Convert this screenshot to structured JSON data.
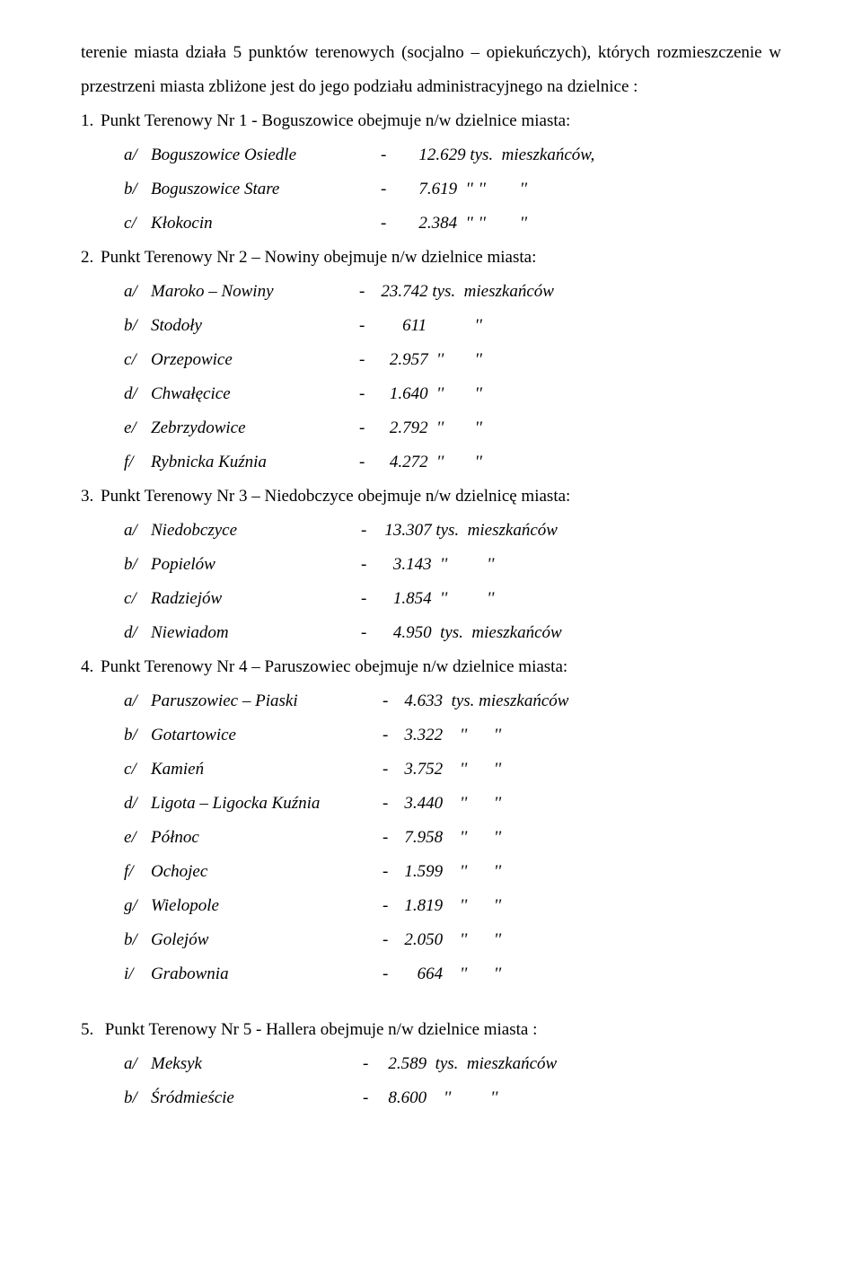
{
  "intro": "terenie miasta  działa 5 punktów terenowych (socjalno – opiekuńczych), których rozmieszczenie w przestrzeni miasta zbliżone jest do jego podziału administracyjnego na dzielnice :",
  "points": [
    {
      "num": "1.",
      "title": "Punkt Terenowy Nr 1 - Boguszowice  obejmuje  n/w  dzielnice  miasta:",
      "subs": [
        {
          "l": "a/",
          "name": "Boguszowice Osiedle",
          "nameW": 220,
          "dash": "-",
          "dashPad": 36,
          "val": "12.629 tys.  mieszkańców,"
        },
        {
          "l": "b/",
          "name": "Boguszowice Stare",
          "nameW": 220,
          "dash": "-",
          "dashPad": 36,
          "val": "7.619  ''",
          "unit": "''        ''"
        },
        {
          "l": "c/",
          "name": "Kłokocin",
          "nameW": 220,
          "dash": "-",
          "dashPad": 36,
          "val": "2.384  ''",
          "unit": "''        ''"
        }
      ]
    },
    {
      "num": "2.",
      "title": "Punkt  Terenowy  Nr 2 – Nowiny  obejmuje  n/w  dzielnice  miasta:",
      "subs": [
        {
          "l": "a/",
          "name": "Maroko – Nowiny",
          "nameW": 214,
          "dash": "-",
          "dashPad": 18,
          "val": "23.742 tys.  mieszkańców"
        },
        {
          "l": "b/",
          "name": "Stodoły",
          "nameW": 214,
          "dash": "-",
          "dashPad": 18,
          "val": "     611",
          "unit": "          ''"
        },
        {
          "l": "c/",
          "name": "Orzepowice",
          "nameW": 214,
          "dash": "-",
          "dashPad": 18,
          "val": "  2.957  ''",
          "unit": "      ''"
        },
        {
          "l": "d/",
          "name": "Chwałęcice",
          "nameW": 214,
          "dash": "-",
          "dashPad": 18,
          "val": "  1.640  ''",
          "unit": "      ''"
        },
        {
          "l": "e/",
          "name": "Zebrzydowice",
          "nameW": 214,
          "dash": "-",
          "dashPad": 18,
          "val": "  2.792  ''",
          "unit": "      ''"
        },
        {
          "l": "f/",
          "name": "Rybnicka  Kuźnia",
          "nameW": 214,
          "dash": "-",
          "dashPad": 18,
          "val": "  4.272  ''",
          "unit": "      ''"
        }
      ]
    },
    {
      "num": "3.",
      "title": "Punkt  Terenowy  Nr 3 – Niedobczyce  obejmuje  n/w  dzielnicę  miasta:",
      "subs": [
        {
          "l": "a/",
          "name": "Niedobczyce",
          "nameW": 214,
          "dash": "-",
          "dashPad": 20,
          "val": "13.307 tys.  mieszkańców"
        },
        {
          "l": "b/",
          "name": "Popielów",
          "nameW": 214,
          "dash": "-",
          "dashPad": 20,
          "val": "  3.143  ''",
          "unit": "        ''"
        },
        {
          "l": "c/",
          "name": "Radziejów",
          "nameW": 214,
          "dash": "-",
          "dashPad": 20,
          "val": "  1.854  ''",
          "unit": "        ''"
        },
        {
          "l": "d/",
          "name": "Niewiadom",
          "nameW": 214,
          "dash": "-",
          "dashPad": 20,
          "val": "  4.950  tys.  mieszkańców"
        }
      ]
    },
    {
      "num": "4.",
      "title": "Punkt  Terenowy  Nr 4 – Paruszowiec  obejmuje  n/w  dzielnice  miasta:",
      "subs": [
        {
          "l": "a/",
          "name": "Paruszowiec – Piaski",
          "nameW": 240,
          "dash": "-",
          "dashPad": 18,
          "val": "4.633  tys. mieszkańców"
        },
        {
          "l": "b/",
          "name": "Gotartowice",
          "nameW": 240,
          "dash": "-",
          "dashPad": 18,
          "val": "3.322    ''",
          "unit": "     ''"
        },
        {
          "l": "c/",
          "name": "Kamień",
          "nameW": 240,
          "dash": "-",
          "dashPad": 18,
          "val": "3.752    ''",
          "unit": "     ''"
        },
        {
          "l": "d/",
          "name": "Ligota – Ligocka Kuźnia",
          "nameW": 240,
          "dash": "-",
          "dashPad": 18,
          "val": "3.440    ''",
          "unit": "     ''"
        },
        {
          "l": "e/",
          "name": "Północ",
          "nameW": 240,
          "dash": "-",
          "dashPad": 18,
          "val": "7.958    ''",
          "unit": "     ''"
        },
        {
          "l": "f/",
          "name": "Ochojec",
          "nameW": 240,
          "dash": "-",
          "dashPad": 18,
          "val": "1.599    ''",
          "unit": "     ''"
        },
        {
          "l": "g/",
          "name": "Wielopole",
          "nameW": 240,
          "dash": "-",
          "dashPad": 18,
          "val": "1.819    ''",
          "unit": "     ''"
        },
        {
          "l": "b/",
          "name": "Golejów",
          "nameW": 240,
          "dash": "-",
          "dashPad": 18,
          "val": "2.050    ''",
          "unit": "     ''"
        },
        {
          "l": "i/",
          "name": "Grabownia",
          "nameW": 240,
          "dash": "-",
          "dashPad": 18,
          "val": "   664    ''",
          "unit": "     ''"
        }
      ]
    }
  ],
  "final": {
    "num": "5.",
    "title": "Punkt  Terenowy  Nr 5  -  Hallera  obejmuje  n/w  dzielnice  miasta :",
    "subs": [
      {
        "l": "a/",
        "name": "Meksyk",
        "nameW": 214,
        "dash": "-",
        "dashPad": 22,
        "val": "2.589  tys.  mieszkańców"
      },
      {
        "l": "b/",
        "name": "Śródmieście",
        "nameW": 214,
        "dash": "-",
        "dashPad": 22,
        "val": "8.600    ''",
        "unit": "        ''"
      }
    ]
  }
}
